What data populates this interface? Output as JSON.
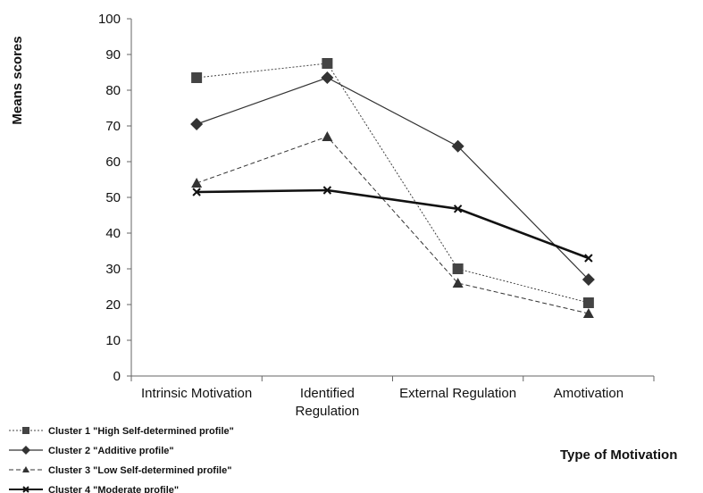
{
  "chart_data": {
    "type": "line",
    "title": "",
    "xlabel": "Type of Motivation",
    "ylabel": "Means scores",
    "categories": [
      [
        "Intrinsic Motivation"
      ],
      [
        "Identified",
        "Regulation"
      ],
      [
        "External Regulation"
      ],
      [
        "Amotivation"
      ]
    ],
    "ylim": [
      0,
      100
    ],
    "yticks": [
      0,
      10,
      20,
      30,
      40,
      50,
      60,
      70,
      80,
      90,
      100
    ],
    "grid": false,
    "legend": "bottom-left",
    "series": [
      {
        "name": "Cluster 1 \"High Self-determined profile\"",
        "values": [
          83.5,
          87.5,
          30,
          20.5
        ],
        "marker": "square",
        "dash": "2,2",
        "width": 1,
        "color": "#444444"
      },
      {
        "name": "Cluster 2 \"Additive profile\"",
        "values": [
          70.5,
          83.5,
          64.3,
          27
        ],
        "marker": "diamond",
        "dash": "",
        "width": 1.2,
        "color": "#333333"
      },
      {
        "name": "Cluster 3 \"Low Self-determined profile\"",
        "values": [
          54,
          67,
          26,
          17.5
        ],
        "marker": "triangle",
        "dash": "5,3",
        "width": 1,
        "color": "#333333"
      },
      {
        "name": "Cluster 4 \"Moderate profile\"",
        "values": [
          51.5,
          52,
          46.8,
          33
        ],
        "marker": "x",
        "dash": "",
        "width": 2.6,
        "color": "#111111"
      }
    ]
  }
}
